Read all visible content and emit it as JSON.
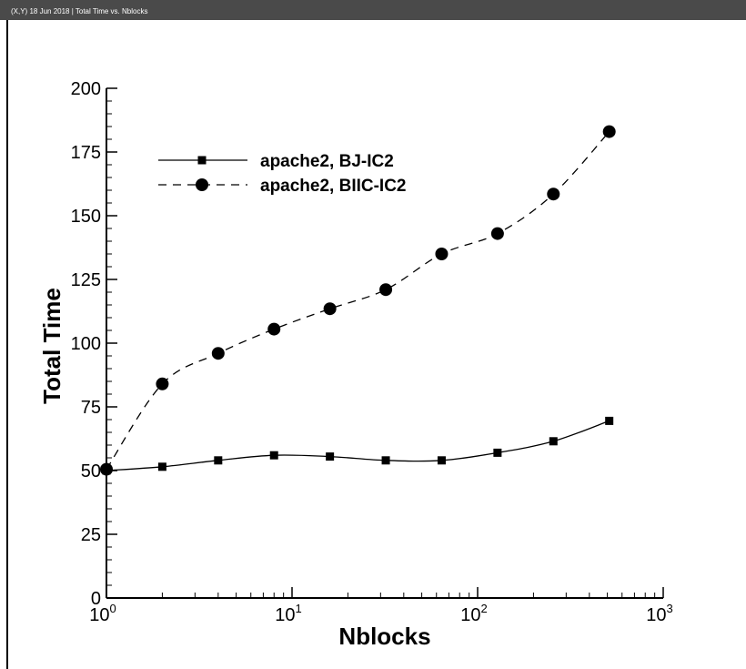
{
  "window": {
    "title": "(X,Y) 18 Jun 2018 | Total Time vs. Nblocks"
  },
  "chart_data": {
    "type": "line",
    "title": "",
    "xlabel": "Nblocks",
    "ylabel": "Total Time",
    "x_scale": "log",
    "xlim": [
      1,
      1000
    ],
    "ylim": [
      0,
      200
    ],
    "yticks": [
      0,
      25,
      50,
      75,
      100,
      125,
      150,
      175,
      200
    ],
    "xticks": [
      {
        "base": "10",
        "exp": "0"
      },
      {
        "base": "10",
        "exp": "1"
      },
      {
        "base": "10",
        "exp": "2"
      },
      {
        "base": "10",
        "exp": "3"
      }
    ],
    "grid": false,
    "legend_position": "top-left",
    "x": [
      1,
      2,
      4,
      8,
      16,
      32,
      64,
      128,
      256,
      512
    ],
    "series": [
      {
        "name": "apache2, BJ-IC2",
        "marker": "square",
        "line": "solid",
        "values": [
          50,
          51.5,
          54,
          56,
          55.5,
          54,
          54,
          57,
          61.5,
          69.5
        ]
      },
      {
        "name": "apache2, BIIC-IC2",
        "marker": "circle",
        "line": "dashed",
        "values": [
          50.5,
          84,
          96,
          105.5,
          113.5,
          121,
          135,
          143,
          158.5,
          183
        ]
      }
    ]
  }
}
